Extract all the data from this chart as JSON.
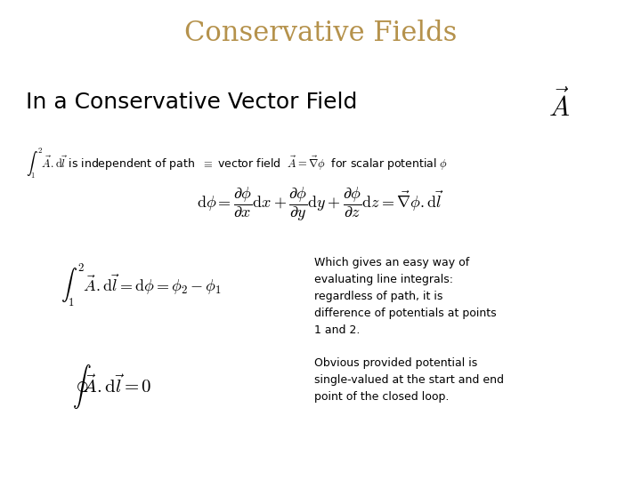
{
  "title": "Conservative Fields",
  "title_color": "#b5924c",
  "title_fontsize": 22,
  "bg_color": "#ffffff",
  "subtitle": "In a Conservative Vector Field",
  "subtitle_fontsize": 18,
  "line1_text": "$\\int_1^2 \\vec{A}.\\mathrm{d}\\vec{l}$ is independent of path  $\\equiv$ vector field  $\\vec{A} = \\vec{\\nabla}\\phi$  for scalar potential $\\phi$",
  "line1_fontsize": 9,
  "eq1": "$\\mathrm{d}\\phi = \\dfrac{\\partial \\phi}{\\partial x}\\mathrm{d}x + \\dfrac{\\partial \\phi}{\\partial y}\\mathrm{d}y + \\dfrac{\\partial \\phi}{\\partial z}\\mathrm{d}z = \\vec{\\nabla}\\phi.\\mathrm{d}\\vec{l}$",
  "eq1_fontsize": 13,
  "eq2": "$\\int_1^2 \\vec{A}.\\mathrm{d}\\vec{l} = \\mathrm{d}\\phi = \\phi_2 - \\phi_1$",
  "eq2_fontsize": 13,
  "eq3": "$\\oint \\vec{A}.\\mathrm{d}\\vec{l} = 0$",
  "eq3_fontsize": 15,
  "note1": "Which gives an easy way of\nevaluating line integrals:\nregardless of path, it is\ndifference of potentials at points\n1 and 2.",
  "note1_fontsize": 9,
  "note2": "Obvious provided potential is\nsingle-valued at the start and end\npoint of the closed loop.",
  "note2_fontsize": 9,
  "vec_A": "$\\vec{A}$",
  "vec_A_fontsize": 22,
  "text_color": "#000000"
}
